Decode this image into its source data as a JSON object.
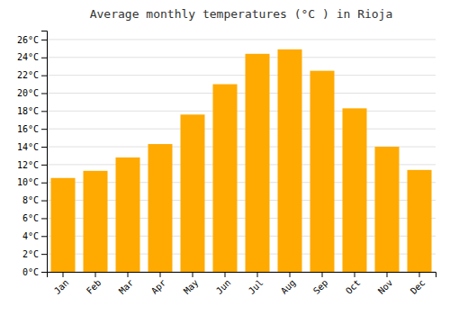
{
  "chart_data": {
    "type": "bar",
    "title": "Average monthly temperatures (°C ) in Rioja",
    "categories": [
      "Jan",
      "Feb",
      "Mar",
      "Apr",
      "May",
      "Jun",
      "Jul",
      "Aug",
      "Sep",
      "Oct",
      "Nov",
      "Dec"
    ],
    "values": [
      10.5,
      11.3,
      12.8,
      14.3,
      17.6,
      21.0,
      24.4,
      24.9,
      22.5,
      18.3,
      14.0,
      11.4
    ],
    "color": "#FFAA00",
    "ylim": [
      0,
      27
    ],
    "yticks": [
      {
        "value": 0,
        "label": "0°C"
      },
      {
        "value": 2,
        "label": "2°C"
      },
      {
        "value": 4,
        "label": "4°C"
      },
      {
        "value": 6,
        "label": "6°C"
      },
      {
        "value": 8,
        "label": "8°C"
      },
      {
        "value": 10,
        "label": "10°C"
      },
      {
        "value": 12,
        "label": "12°C"
      },
      {
        "value": 14,
        "label": "14°C"
      },
      {
        "value": 16,
        "label": "16°C"
      },
      {
        "value": 18,
        "label": "18°C"
      },
      {
        "value": 20,
        "label": "20°C"
      },
      {
        "value": 22,
        "label": "22°C"
      },
      {
        "value": 24,
        "label": "24°C"
      },
      {
        "value": 26,
        "label": "26°C"
      }
    ],
    "grid": true
  }
}
